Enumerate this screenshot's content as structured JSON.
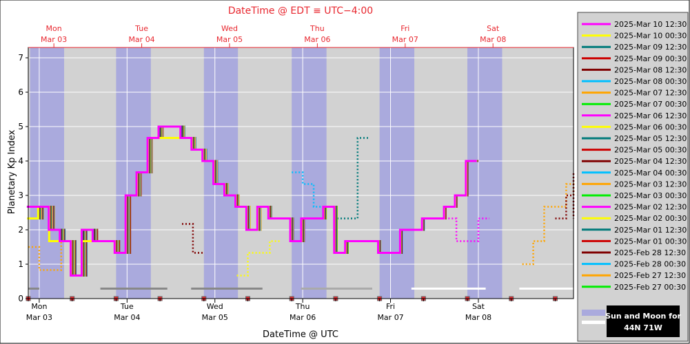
{
  "chart_data": {
    "type": "line",
    "title": "DateTime @ EDT ≡ UTC−4:00",
    "xlabel": "DateTime @ UTC",
    "ylabel": "Planetary Kp Index",
    "ylim": [
      0,
      7.3
    ],
    "yticks": [
      0,
      1,
      2,
      3,
      4,
      5,
      6,
      7
    ],
    "x_unit": "hours since 2025-03-02 21:00 UTC",
    "xlim": [
      0,
      149
    ],
    "x_bottom_ticks": [
      {
        "day": "Mon",
        "date": "Mar 03",
        "x": 3
      },
      {
        "day": "Tue",
        "date": "Mar 04",
        "x": 27
      },
      {
        "day": "Wed",
        "date": "Mar 05",
        "x": 51
      },
      {
        "day": "Thu",
        "date": "Mar 06",
        "x": 75
      },
      {
        "day": "Fri",
        "date": "Mar 07",
        "x": 99
      },
      {
        "day": "Sat",
        "date": "Mar 08",
        "x": 123
      }
    ],
    "x_top_ticks": [
      {
        "day": "Mon",
        "date": "Mar 03",
        "x": 7
      },
      {
        "day": "Tue",
        "date": "Mar 04",
        "x": 31
      },
      {
        "day": "Wed",
        "date": "Mar 05",
        "x": 55
      },
      {
        "day": "Thu",
        "date": "Mar 06",
        "x": 79
      },
      {
        "day": "Fri",
        "date": "Mar 07",
        "x": 103
      },
      {
        "day": "Sat",
        "date": "Mar 08",
        "x": 127
      }
    ],
    "night_bands": [
      [
        0.5,
        9.8
      ],
      [
        24,
        33.5
      ],
      [
        48,
        57.3
      ],
      [
        72,
        81.5
      ],
      [
        96,
        105.5
      ],
      [
        120,
        129.5
      ]
    ],
    "legend_position": "right",
    "legend_footer": "Sun and Moon for 44N 71W",
    "series": [
      {
        "name": "2025-Mar 10 12:30",
        "color": "#ff00ff",
        "offset": -0.4,
        "values": [
          2.67,
          2.67,
          2.0,
          1.67,
          0.67,
          2.0,
          1.67,
          1.67,
          1.33,
          3.0,
          3.67,
          4.67,
          5.0,
          5.0,
          4.67,
          4.33,
          4.0,
          3.33,
          3.0,
          2.67,
          2.0,
          2.67,
          2.33,
          2.33,
          1.67,
          2.33,
          2.33,
          2.67,
          1.33,
          1.67,
          1.67,
          1.67,
          1.33,
          1.33,
          2.0,
          2.0,
          2.33,
          2.33,
          2.67,
          3.0,
          4.0
        ]
      },
      {
        "name": "2025-Mar 10 00:30",
        "color": "#ffff00",
        "offset": -0.3,
        "values": [
          2.33,
          2.67,
          1.67,
          1.67,
          0.67,
          1.67,
          1.67,
          1.67,
          1.33,
          3.0,
          3.67,
          4.67,
          4.67,
          4.67,
          4.67,
          4.33,
          4.0,
          3.33,
          3.0,
          2.67,
          2.0,
          2.67,
          2.33,
          2.33,
          1.67,
          2.33,
          2.33,
          2.67,
          1.33,
          1.67,
          1.67,
          1.67,
          1.33,
          1.33,
          2.0,
          2.0,
          2.33,
          2.33,
          2.67,
          3.0,
          4.0
        ]
      },
      {
        "name": "2025-Mar 09 12:30",
        "color": "#007a7a",
        "offset": -0.2,
        "values": [
          2.33,
          2.67,
          2.0,
          1.67,
          0.67,
          2.0,
          1.67,
          1.67,
          1.33,
          3.0,
          3.67,
          4.67,
          5.0,
          5.0,
          4.67,
          4.33,
          4.0,
          3.33,
          3.0,
          2.67,
          2.0,
          2.67,
          2.33,
          2.33,
          1.67,
          2.33,
          2.33,
          2.67,
          1.33,
          1.67,
          1.67,
          1.67,
          1.33,
          1.33,
          2.0,
          2.0,
          2.33,
          2.33,
          2.67,
          3.0,
          4.0
        ]
      },
      {
        "name": "2025-Mar 09 00:30",
        "color": "#cc0000",
        "offset": -0.1,
        "values": [
          2.33,
          2.67,
          2.0,
          1.67,
          0.67,
          2.0,
          1.67,
          1.67,
          1.33,
          3.0,
          3.67,
          4.67,
          5.0,
          5.0,
          4.67,
          4.33,
          4.0,
          3.33,
          3.0,
          2.67,
          2.0,
          2.67,
          2.33,
          2.33,
          1.67,
          2.33,
          2.33,
          2.67,
          1.33,
          1.67,
          1.67,
          1.67,
          1.33,
          1.33,
          2.0,
          2.0,
          2.33,
          2.33,
          2.67,
          3.0,
          4.0
        ]
      },
      {
        "name": "2025-Mar 08 12:30",
        "color": "#800000",
        "offset": 0.0,
        "values": [
          2.33,
          2.67,
          2.0,
          1.67,
          0.67,
          2.0,
          1.67,
          1.67,
          1.33,
          3.0,
          3.67,
          4.67,
          5.0,
          5.0,
          4.67,
          4.33,
          4.0,
          3.33,
          3.0,
          2.67,
          2.0,
          2.67,
          2.33,
          2.33,
          1.67,
          2.33,
          2.33,
          2.67,
          1.33,
          1.67,
          1.67,
          1.67,
          1.33,
          1.33,
          2.0,
          2.0,
          2.33,
          2.33,
          2.67,
          3.0,
          4.0
        ]
      },
      {
        "name": "2025-Mar 08 00:30",
        "color": "#00bfff",
        "offset": 0.1,
        "values": [
          2.33,
          2.67,
          2.0,
          1.67,
          0.67,
          2.0,
          1.67,
          1.67,
          1.33,
          3.0,
          3.67,
          4.67,
          5.0,
          5.0,
          4.67,
          4.33,
          4.0,
          3.33,
          3.0,
          2.67,
          2.0,
          2.67,
          2.33,
          2.33,
          1.67,
          2.33,
          2.33,
          2.67,
          1.33,
          1.67,
          1.67,
          1.67,
          1.33,
          1.33,
          2.0,
          2.0,
          2.33,
          2.33
        ]
      },
      {
        "name": "2025-Mar 07 12:30",
        "color": "#ffa500",
        "offset": 0.2,
        "values": [
          2.33,
          2.67,
          2.0,
          1.67,
          0.67,
          2.0,
          1.67,
          1.67,
          1.33,
          3.0,
          3.67,
          4.67,
          5.0,
          5.0,
          4.67,
          4.33,
          4.0,
          3.33,
          3.0,
          2.67,
          2.0,
          2.67,
          2.33,
          2.33,
          1.67,
          2.33,
          2.33,
          2.67,
          1.33,
          1.67,
          1.67,
          1.67,
          1.33,
          1.33
        ]
      },
      {
        "name": "2025-Mar 07 00:30",
        "color": "#00ee00",
        "offset": 0.3,
        "values": [
          2.33,
          2.67,
          2.0,
          1.67,
          0.67,
          2.0,
          1.67,
          1.67,
          1.33,
          3.0,
          3.67,
          4.67,
          5.0,
          5.0,
          4.67,
          4.33,
          4.0,
          3.33,
          3.0,
          2.67,
          2.0,
          2.67,
          2.33,
          2.33,
          1.67,
          2.33,
          2.33,
          2.67,
          1.33,
          1.67
        ]
      },
      {
        "name": "2025-Mar 06 12:30",
        "color": "#ff00ff",
        "offset": 0.4,
        "values": [
          2.33,
          2.67,
          2.0,
          1.67,
          0.67,
          2.0,
          1.67,
          1.67,
          1.33,
          3.0,
          3.67,
          4.67,
          5.0,
          5.0,
          4.67,
          4.33,
          4.0,
          3.33,
          3.0,
          2.67,
          2.0,
          2.67,
          2.33,
          2.33,
          1.67,
          2.33
        ]
      },
      {
        "name": "2025-Mar 06 00:30",
        "color": "#ffff00",
        "offset": 0.5,
        "values": [
          2.33,
          2.67,
          2.0,
          1.67,
          0.67,
          2.0,
          1.67,
          1.67,
          1.33,
          3.0,
          3.67,
          4.67,
          5.0,
          5.0,
          4.67,
          4.33,
          4.0,
          3.33,
          3.0,
          2.67,
          2.0,
          2.67
        ]
      },
      {
        "name": "2025-Mar 05 12:30",
        "color": "#007a7a",
        "offset": 0.6,
        "values": [
          2.33,
          2.67,
          2.0,
          1.67,
          0.67,
          2.0,
          1.67,
          1.67,
          1.33,
          3.0,
          3.67,
          4.67,
          5.0,
          5.0,
          4.67,
          4.33,
          4.0,
          3.33
        ]
      },
      {
        "name": "2025-Mar 05 00:30",
        "color": "#cc0000",
        "offset": 0.7,
        "values": [
          2.33,
          2.67,
          2.0,
          1.67,
          0.67,
          2.0,
          1.67,
          1.67,
          1.33,
          3.0,
          3.67,
          4.67,
          5.0,
          5.0
        ]
      },
      {
        "name": "2025-Mar 04 12:30",
        "color": "#800000",
        "offset": 0.8,
        "values": [
          2.33,
          2.67,
          2.0,
          1.67,
          0.67,
          2.0,
          1.67,
          1.67,
          1.33,
          3.0
        ]
      },
      {
        "name": "2025-Mar 04 00:30",
        "color": "#00bfff",
        "offset": 0.9,
        "values": [
          2.33,
          2.67,
          2.0,
          1.67,
          0.67,
          2.0
        ]
      },
      {
        "name": "2025-Mar 03 12:30",
        "color": "#ffa500",
        "offset": 1.0,
        "values": [
          2.33,
          2.67,
          2.0
        ]
      },
      {
        "name": "2025-Mar 03 00:30",
        "color": "#00ee00",
        "offset": 1.1,
        "values": [
          2.33
        ]
      },
      {
        "name": "2025-Mar 02 12:30",
        "color": "#ff00ff",
        "offset": 0,
        "values": []
      },
      {
        "name": "2025-Mar 02 00:30",
        "color": "#ffff00",
        "offset": 0,
        "values": []
      },
      {
        "name": "2025-Mar 01 12:30",
        "color": "#007a7a",
        "offset": 0,
        "values": []
      },
      {
        "name": "2025-Mar 01 00:30",
        "color": "#cc0000",
        "offset": 0,
        "values": []
      },
      {
        "name": "2025-Feb 28 12:30",
        "color": "#800000",
        "offset": 0,
        "values": []
      },
      {
        "name": "2025-Feb 28 00:30",
        "color": "#00bfff",
        "offset": 0,
        "values": []
      },
      {
        "name": "2025-Feb 27 12:30",
        "color": "#ffa500",
        "offset": 0,
        "values": []
      },
      {
        "name": "2025-Feb 27 00:30",
        "color": "#00ee00",
        "offset": 0,
        "values": []
      }
    ],
    "forecasts": [
      {
        "color": "#ffa500",
        "start": 0,
        "values": [
          1.5,
          0.83,
          0.83,
          1.67
        ]
      },
      {
        "color": "#800000",
        "start": 42,
        "values": [
          2.17,
          1.33
        ]
      },
      {
        "color": "#ffff00",
        "start": 57,
        "values": [
          0.67,
          1.33,
          1.33,
          1.67
        ]
      },
      {
        "color": "#00bfff",
        "start": 72,
        "values": [
          3.67,
          3.33,
          2.67,
          2.67
        ]
      },
      {
        "color": "#007a7a",
        "start": 81,
        "values": [
          2.67,
          2.33,
          2.33,
          4.67
        ]
      },
      {
        "color": "#ff00ff",
        "start": 111,
        "values": [
          2.33,
          2.33,
          1.67,
          1.67,
          2.33
        ]
      },
      {
        "color": "#ffa500",
        "start": 135,
        "values": [
          1.0,
          1.67,
          2.67,
          2.67,
          3.33,
          3.0
        ]
      },
      {
        "color": "#800000",
        "start": 144,
        "values": [
          2.33,
          3.0,
          3.67,
          3.33,
          2.33
        ]
      }
    ],
    "sun_moon_bars": [
      {
        "color": "#888888",
        "start": 0,
        "end": 3
      },
      {
        "color": "#888888",
        "start": 19.7,
        "end": 38
      },
      {
        "color": "#888888",
        "start": 44.5,
        "end": 64
      },
      {
        "color": "#aaaaaa",
        "start": 74.5,
        "end": 94
      },
      {
        "color": "#ffffff",
        "start": 104.7,
        "end": 125
      },
      {
        "color": "#ffffff",
        "start": 134.2,
        "end": 155
      },
      {
        "color": "#ffffff",
        "start": 164,
        "end": 173
      }
    ]
  }
}
